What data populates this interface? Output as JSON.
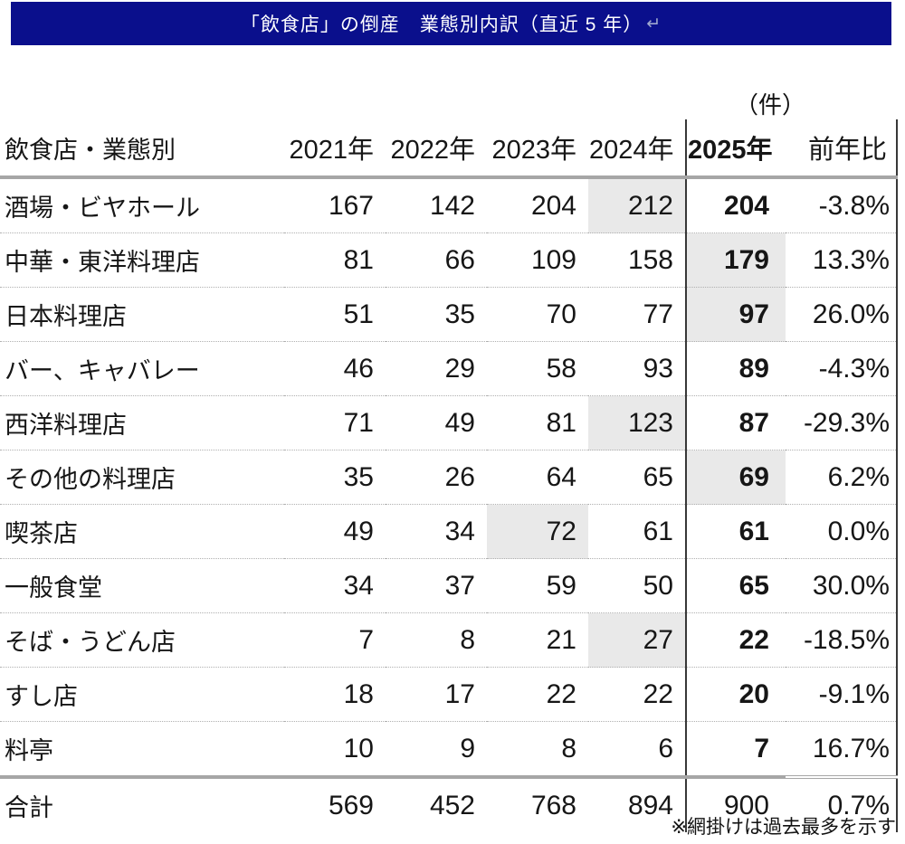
{
  "title": {
    "text": "「飲食店」の倒産　業態別内訳（直近 5 年）",
    "return_mark": "↵"
  },
  "unit_label": "（件）",
  "colors": {
    "title_bg": "#0a0f8c",
    "title_text": "#ffffff",
    "shaded_cell": "#e9e9e9",
    "thick_rule": "#a6a6a6",
    "column_rule": "#383838"
  },
  "table": {
    "header": {
      "name": "飲食店・業態別",
      "y2021": "2021年",
      "y2022": "2022年",
      "y2023": "2023年",
      "y2024": "2024年",
      "y2025": "2025年",
      "yoy": "前年比"
    },
    "rows": [
      {
        "label": "酒場・ビヤホール",
        "y2021": "167",
        "y2022": "142",
        "y2023": "204",
        "y2024": "212",
        "y2025": "204",
        "yoy": "-3.8%",
        "shaded_col": "y2024"
      },
      {
        "label": "中華・東洋料理店",
        "y2021": "81",
        "y2022": "66",
        "y2023": "109",
        "y2024": "158",
        "y2025": "179",
        "yoy": "13.3%",
        "shaded_col": "y2025"
      },
      {
        "label": "日本料理店",
        "y2021": "51",
        "y2022": "35",
        "y2023": "70",
        "y2024": "77",
        "y2025": "97",
        "yoy": "26.0%",
        "shaded_col": "y2025"
      },
      {
        "label": "バー、キャバレー",
        "y2021": "46",
        "y2022": "29",
        "y2023": "58",
        "y2024": "93",
        "y2025": "89",
        "yoy": "-4.3%",
        "shaded_col": null
      },
      {
        "label": "西洋料理店",
        "y2021": "71",
        "y2022": "49",
        "y2023": "81",
        "y2024": "123",
        "y2025": "87",
        "yoy": "-29.3%",
        "shaded_col": "y2024"
      },
      {
        "label": "その他の料理店",
        "y2021": "35",
        "y2022": "26",
        "y2023": "64",
        "y2024": "65",
        "y2025": "69",
        "yoy": "6.2%",
        "shaded_col": "y2025"
      },
      {
        "label": "喫茶店",
        "y2021": "49",
        "y2022": "34",
        "y2023": "72",
        "y2024": "61",
        "y2025": "61",
        "yoy": "0.0%",
        "shaded_col": "y2023"
      },
      {
        "label": "一般食堂",
        "y2021": "34",
        "y2022": "37",
        "y2023": "59",
        "y2024": "50",
        "y2025": "65",
        "yoy": "30.0%",
        "shaded_col": null
      },
      {
        "label": "そば・うどん店",
        "y2021": "7",
        "y2022": "8",
        "y2023": "21",
        "y2024": "27",
        "y2025": "22",
        "yoy": "-18.5%",
        "shaded_col": "y2024"
      },
      {
        "label": "すし店",
        "y2021": "18",
        "y2022": "17",
        "y2023": "22",
        "y2024": "22",
        "y2025": "20",
        "yoy": "-9.1%",
        "shaded_col": null
      },
      {
        "label": "料亭",
        "y2021": "10",
        "y2022": "9",
        "y2023": "8",
        "y2024": "6",
        "y2025": "7",
        "yoy": "16.7%",
        "shaded_col": null
      }
    ],
    "total": {
      "label": "合計",
      "y2021": "569",
      "y2022": "452",
      "y2023": "768",
      "y2024": "894",
      "y2025": "900",
      "yoy": "0.7%"
    }
  },
  "footnote": "※網掛けは過去最多を示す"
}
